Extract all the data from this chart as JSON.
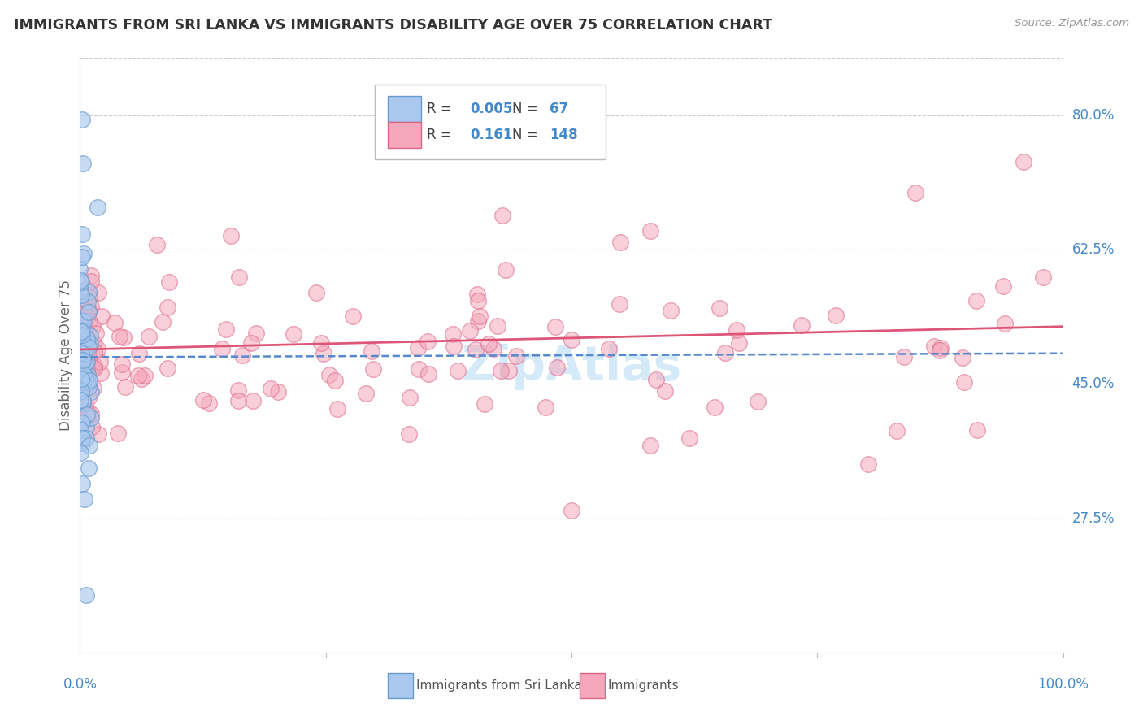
{
  "title": "IMMIGRANTS FROM SRI LANKA VS IMMIGRANTS DISABILITY AGE OVER 75 CORRELATION CHART",
  "source": "Source: ZipAtlas.com",
  "ylabel": "Disability Age Over 75",
  "blue_color": "#aac8ee",
  "pink_color": "#f5a8bb",
  "blue_edge_color": "#6699cc",
  "pink_edge_color": "#dd6688",
  "blue_line_color": "#5588cc",
  "pink_line_color": "#dd5577",
  "title_color": "#333333",
  "axis_label_color": "#4488cc",
  "grid_color": "#cccccc",
  "watermark_color": "#d0e8f8",
  "ylim_min": 0.1,
  "ylim_max": 0.875,
  "xlim_min": 0.0,
  "xlim_max": 1.0,
  "ytick_labels": [
    "80.0%",
    "62.5%",
    "45.0%",
    "27.5%"
  ],
  "ytick_values": [
    0.8,
    0.625,
    0.45,
    0.275
  ],
  "legend_R_blue": "0.005",
  "legend_N_blue": "67",
  "legend_R_pink": "0.161",
  "legend_N_pink": "148",
  "blue_line_y0": 0.485,
  "blue_line_y1": 0.49,
  "pink_line_y0": 0.495,
  "pink_line_y1": 0.525
}
